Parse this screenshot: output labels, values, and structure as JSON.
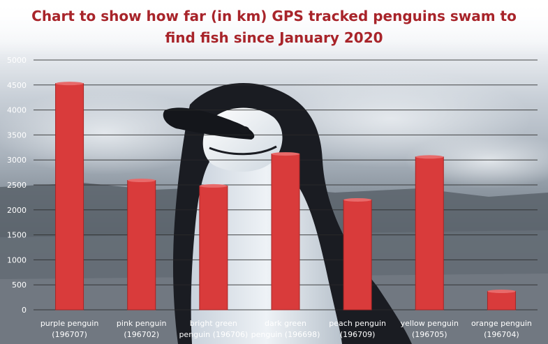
{
  "chart_data": {
    "type": "bar",
    "title_lines": [
      "Chart to show how far (in km) GPS tracked penguins swam to",
      "find fish since January 2020"
    ],
    "categories": [
      [
        "purple penguin",
        "(196707)"
      ],
      [
        "pink penguin",
        "(196702)"
      ],
      [
        "bright green",
        "penguin (196706)"
      ],
      [
        "dark green",
        "penguin (196698)"
      ],
      [
        "peach penguin",
        "(196709)"
      ],
      [
        "yellow penguin",
        "(196705)"
      ],
      [
        "orange penguin",
        "(196704)"
      ]
    ],
    "values": [
      4530,
      2590,
      2480,
      3120,
      2200,
      3060,
      370
    ],
    "ylim": [
      0,
      5000
    ],
    "yticks": [
      0,
      500,
      1000,
      1500,
      2000,
      2500,
      3000,
      3500,
      4000,
      4500,
      5000
    ],
    "grid": true,
    "legend": "none"
  },
  "colors": {
    "bar": "#d93b3b",
    "bar_dark": "#a82424",
    "title": "#a8242a",
    "gridline": "#2b2b2b",
    "label": "#ffffff"
  },
  "background": {
    "description_icon": "penguin-photo-background"
  }
}
